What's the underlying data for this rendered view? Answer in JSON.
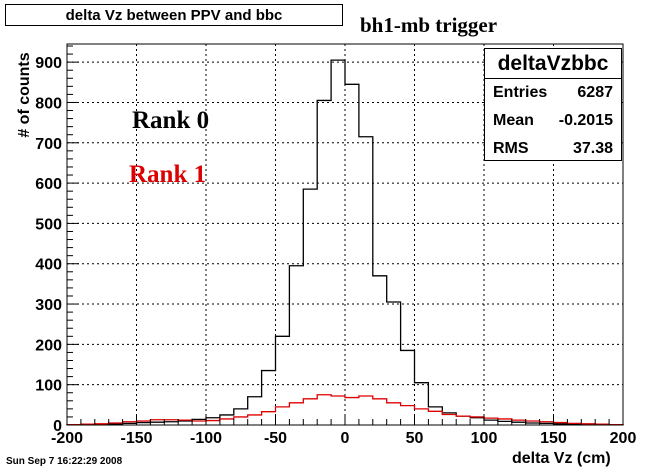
{
  "chart_data": {
    "type": "histogram",
    "title": "delta Vz between PPV and bbc",
    "annotation": "bh1-mb trigger",
    "xlabel": "delta Vz (cm)",
    "ylabel": "# of counts",
    "xlim": [
      -200,
      200
    ],
    "ylim": [
      0,
      945
    ],
    "grid": true,
    "bin_width": 10,
    "x_ticks": [
      -200,
      -150,
      -100,
      -50,
      0,
      50,
      100,
      150,
      200
    ],
    "y_ticks": [
      0,
      100,
      200,
      300,
      400,
      500,
      600,
      700,
      800,
      900
    ],
    "bin_edges": [
      -200,
      -190,
      -180,
      -170,
      -160,
      -150,
      -140,
      -130,
      -120,
      -110,
      -100,
      -90,
      -80,
      -70,
      -60,
      -50,
      -40,
      -30,
      -20,
      -10,
      0,
      10,
      20,
      30,
      40,
      50,
      60,
      70,
      80,
      90,
      100,
      110,
      120,
      130,
      140,
      150,
      160,
      170,
      180,
      190,
      200
    ],
    "series": [
      {
        "name": "Rank 0",
        "color": "#000000",
        "values": [
          1,
          1,
          2,
          3,
          4,
          6,
          7,
          8,
          10,
          14,
          18,
          25,
          40,
          70,
          135,
          220,
          395,
          585,
          805,
          905,
          845,
          715,
          370,
          305,
          185,
          105,
          45,
          30,
          22,
          18,
          12,
          9,
          7,
          5,
          4,
          3,
          2,
          2,
          1,
          1
        ]
      },
      {
        "name": "Rank 1",
        "color": "#dd0000",
        "values": [
          1,
          2,
          3,
          5,
          8,
          10,
          13,
          13,
          12,
          10,
          11,
          15,
          20,
          25,
          33,
          45,
          55,
          65,
          75,
          72,
          68,
          72,
          65,
          55,
          48,
          40,
          34,
          26,
          22,
          20,
          17,
          15,
          12,
          10,
          8,
          6,
          4,
          3,
          2,
          1
        ]
      }
    ],
    "stats": {
      "name": "deltaVzbbc",
      "rows": [
        {
          "label": "Entries",
          "value": "6287"
        },
        {
          "label": "Mean",
          "value": "-0.2015"
        },
        {
          "label": "RMS",
          "value": "37.38"
        }
      ]
    },
    "timestamp": "Sun Sep  7 16:22:29 2008"
  }
}
